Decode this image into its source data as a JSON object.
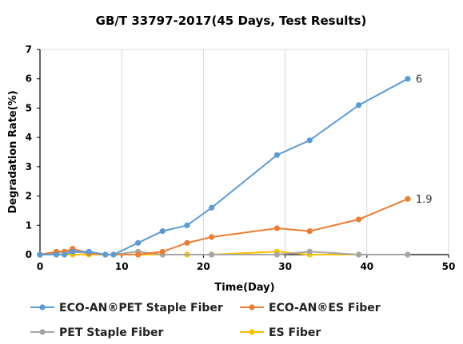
{
  "chart_data": {
    "type": "line",
    "title": "GB/T 33797-2017(45  Days, Test Results)",
    "xlabel": "Time(Day)",
    "ylabel": "Degradation Rate(%)",
    "xlim": [
      0,
      50
    ],
    "ylim": [
      0,
      7
    ],
    "xticks": [
      0,
      10,
      20,
      30,
      40,
      50
    ],
    "yticks": [
      0,
      1,
      2,
      3,
      4,
      5,
      6,
      7
    ],
    "grid": "vertical",
    "legend_position": "bottom",
    "series": [
      {
        "name": "ECO-AN®PET Staple Fiber",
        "color": "#5B9BD5",
        "points": [
          [
            0,
            0
          ],
          [
            2,
            0
          ],
          [
            3,
            0
          ],
          [
            4,
            0.1
          ],
          [
            6,
            0.1
          ],
          [
            8,
            0
          ],
          [
            9,
            0
          ],
          [
            12,
            0.4
          ],
          [
            15,
            0.8
          ],
          [
            18,
            1.0
          ],
          [
            21,
            1.6
          ],
          [
            29,
            3.4
          ],
          [
            33,
            3.9
          ],
          [
            39,
            5.1
          ],
          [
            45,
            6.0
          ]
        ],
        "end_label": "6"
      },
      {
        "name": "ECO-AN®ES Fiber",
        "color": "#ED7D31",
        "points": [
          [
            0,
            0
          ],
          [
            2,
            0.1
          ],
          [
            3,
            0.1
          ],
          [
            4,
            0.2
          ],
          [
            6,
            0.05
          ],
          [
            8,
            0
          ],
          [
            9,
            0
          ],
          [
            12,
            0
          ],
          [
            15,
            0.1
          ],
          [
            18,
            0.4
          ],
          [
            21,
            0.6
          ],
          [
            29,
            0.9
          ],
          [
            33,
            0.8
          ],
          [
            39,
            1.2
          ],
          [
            45,
            1.9
          ]
        ],
        "end_label": "1.9"
      },
      {
        "name": "PET Staple Fiber",
        "color": "#A5A5A5",
        "points": [
          [
            0,
            0
          ],
          [
            2,
            0.05
          ],
          [
            3,
            0.1
          ],
          [
            4,
            0.1
          ],
          [
            6,
            0.05
          ],
          [
            8,
            0
          ],
          [
            9,
            0
          ],
          [
            12,
            0.1
          ],
          [
            15,
            0
          ],
          [
            21,
            0
          ],
          [
            29,
            0
          ],
          [
            33,
            0.1
          ],
          [
            39,
            0
          ],
          [
            45,
            0
          ]
        ]
      },
      {
        "name": "ES Fiber",
        "color": "#FFC000",
        "points": [
          [
            0,
            0
          ],
          [
            2,
            0
          ],
          [
            3,
            0
          ],
          [
            4,
            0
          ],
          [
            6,
            0
          ],
          [
            8,
            0
          ],
          [
            9,
            0
          ],
          [
            12,
            0
          ],
          [
            15,
            0
          ],
          [
            18,
            0
          ],
          [
            21,
            0
          ],
          [
            29,
            0.1
          ],
          [
            33,
            0
          ],
          [
            39,
            0
          ],
          [
            45,
            0
          ]
        ]
      }
    ]
  }
}
